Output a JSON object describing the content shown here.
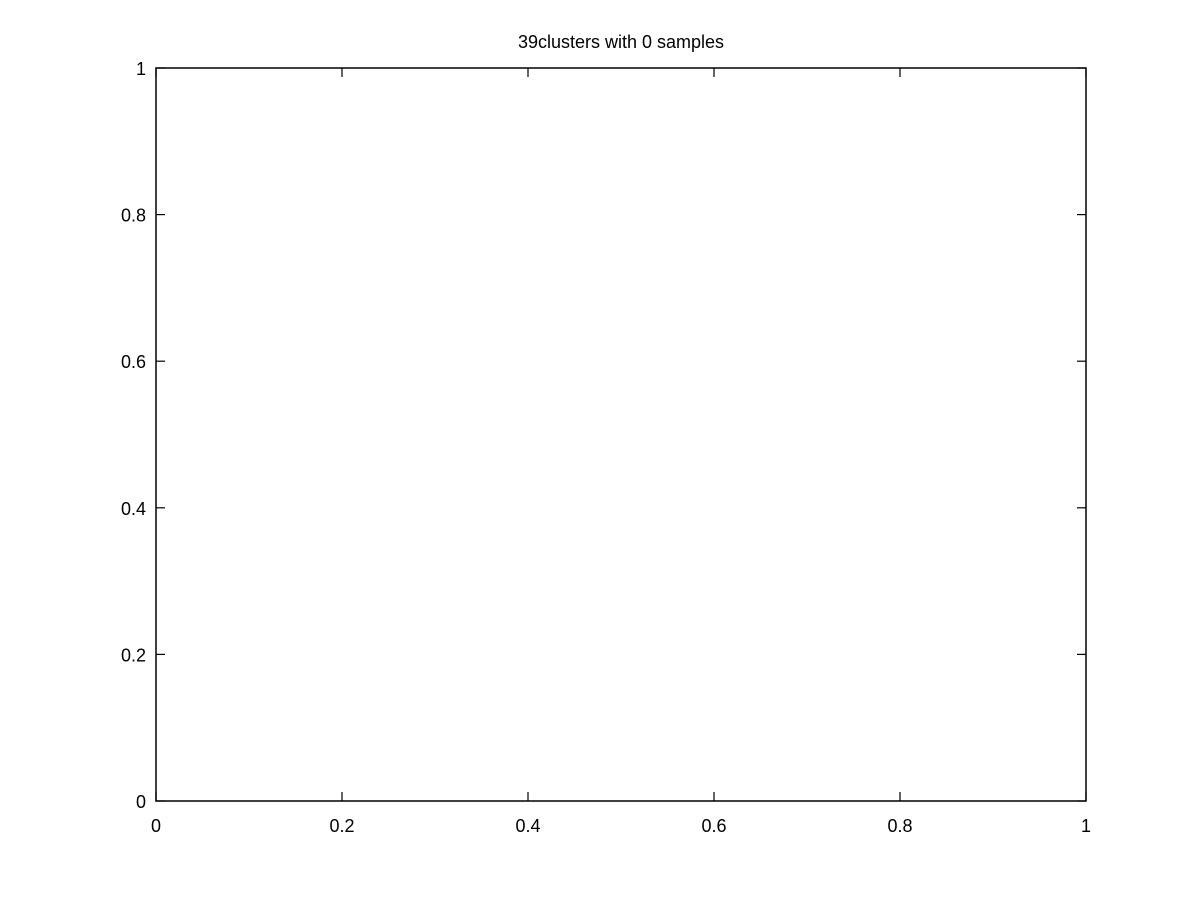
{
  "chart_data": {
    "type": "scatter",
    "title": "39clusters with 0 samples",
    "xlabel": "",
    "ylabel": "",
    "xlim": [
      0,
      1
    ],
    "ylim": [
      0,
      1
    ],
    "x_ticks": [
      0,
      0.2,
      0.4,
      0.6,
      0.8,
      1
    ],
    "y_ticks": [
      0,
      0.2,
      0.4,
      0.6,
      0.8,
      1
    ],
    "x_tick_labels": [
      "0",
      "0.2",
      "0.4",
      "0.6",
      "0.8",
      "1"
    ],
    "y_tick_labels": [
      "0",
      "0.2",
      "0.4",
      "0.6",
      "0.8",
      "1"
    ],
    "grid": false,
    "legend": "none",
    "series": [],
    "colors": {
      "axis": "#000000",
      "background": "#ffffff"
    }
  }
}
